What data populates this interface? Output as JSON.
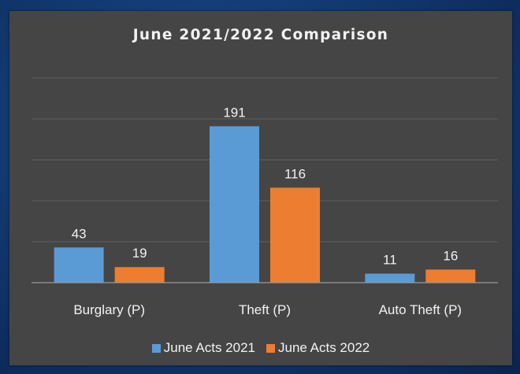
{
  "chart_data": {
    "type": "bar",
    "title": "June 2021/2022 Comparison",
    "xlabel": "",
    "ylabel": "",
    "ylim": [
      0,
      250
    ],
    "grid": true,
    "legend_position": "bottom",
    "categories": [
      "Burglary (P)",
      "Theft (P)",
      "Auto Theft (P)"
    ],
    "series": [
      {
        "name": "June Acts 2021",
        "values": [
          43,
          191,
          11
        ],
        "color": "#5b9bd5"
      },
      {
        "name": "June Acts 2022",
        "values": [
          19,
          116,
          16
        ],
        "color": "#ed7d31"
      }
    ]
  }
}
